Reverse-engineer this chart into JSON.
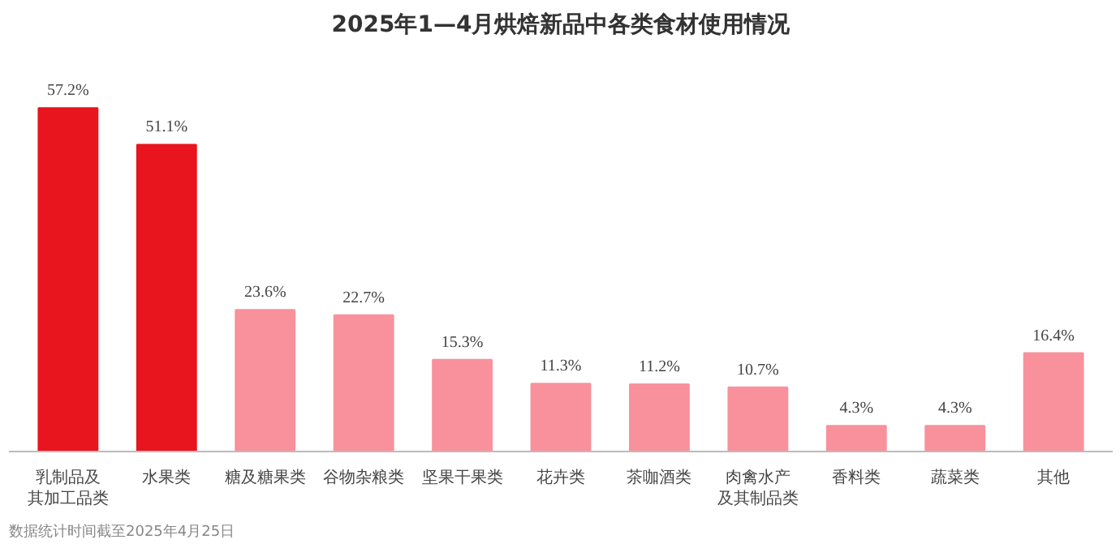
{
  "chart_data": {
    "type": "bar",
    "title": "2025年1—4月烘焙新品中各类食材使用情况",
    "categories": [
      "乳制品及其加工品类",
      "水果类",
      "糖及糖果类",
      "谷物杂粮类",
      "坚果干果类",
      "花卉类",
      "茶咖酒类",
      "肉禽水产及其制品类",
      "香料类",
      "蔬菜类",
      "其他"
    ],
    "values": [
      57.2,
      51.1,
      23.6,
      22.7,
      15.3,
      11.3,
      11.2,
      10.7,
      4.3,
      4.3,
      16.4
    ],
    "value_labels": [
      "57.2%",
      "51.1%",
      "23.6%",
      "22.7%",
      "15.3%",
      "11.3%",
      "11.2%",
      "10.7%",
      "4.3%",
      "4.3%",
      "16.4%"
    ],
    "colors": [
      "#e8141e",
      "#e8141e",
      "#f9919c",
      "#f9919c",
      "#f9919c",
      "#f9919c",
      "#f9919c",
      "#f9919c",
      "#f9919c",
      "#f9919c",
      "#f9919c"
    ],
    "grid": false,
    "annotations": [
      "数据统计时间截至2025年4月25日"
    ]
  }
}
